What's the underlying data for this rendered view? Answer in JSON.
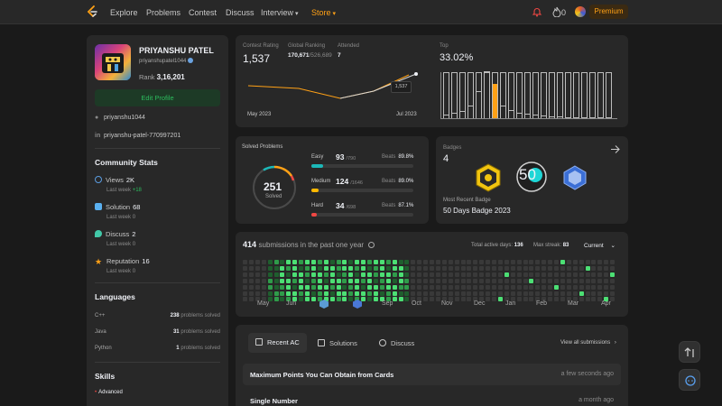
{
  "nav": {
    "items": [
      "Explore",
      "Problems",
      "Contest",
      "Discuss",
      "Interview",
      "Store"
    ],
    "fire_count": "0",
    "premium": "Premium"
  },
  "profile": {
    "name": "PRIYANSHU PATEL",
    "handle": "priyanshupatel1044",
    "rank_label": "Rank",
    "rank": "3,16,201",
    "edit": "Edit Profile",
    "github": "priyanshu1044",
    "linkedin": "priyanshu-patel-770997201"
  },
  "community": {
    "title": "Community Stats",
    "items": [
      {
        "label": "Views",
        "value": "2K",
        "sub": "Last week",
        "sub_val": "+18",
        "color": "#5a9ce0"
      },
      {
        "label": "Solution",
        "value": "68",
        "sub": "Last week",
        "sub_val": "0",
        "color": "#5ab0f0"
      },
      {
        "label": "Discuss",
        "value": "2",
        "sub": "Last week",
        "sub_val": "0",
        "color": "#42c8a8"
      },
      {
        "label": "Reputation",
        "value": "16",
        "sub": "Last week",
        "sub_val": "0",
        "color": "#ffa116"
      }
    ]
  },
  "languages": {
    "title": "Languages",
    "items": [
      {
        "name": "C++",
        "count": "238",
        "suffix": "problems solved"
      },
      {
        "name": "Java",
        "count": "31",
        "suffix": "problems solved"
      },
      {
        "name": "Python",
        "count": "1",
        "suffix": "problems solved"
      }
    ]
  },
  "skills": {
    "title": "Skills",
    "level": "Advanced"
  },
  "contest": {
    "rating_label": "Contest Rating",
    "rating": "1,537",
    "global_label": "Global Ranking",
    "global": "170,671",
    "global_total": "/526,689",
    "attended_label": "Attended",
    "attended": "7",
    "x_start": "May 2023",
    "x_end": "Jul 2023",
    "tooltip": "1,537",
    "top_label": "Top",
    "top_pct": "33.02%"
  },
  "solved": {
    "title": "Solved Problems",
    "total": "251",
    "total_label": "Solved",
    "rows": [
      {
        "label": "Easy",
        "count": "93",
        "total": "/790",
        "beats_label": "Beats",
        "beats": "89.8%",
        "color": "#1cb8b8",
        "fill": 0.118
      },
      {
        "label": "Medium",
        "count": "124",
        "total": "/1646",
        "beats_label": "Beats",
        "beats": "89.0%",
        "color": "#ffb800",
        "fill": 0.075
      },
      {
        "label": "Hard",
        "count": "34",
        "total": "/698",
        "beats_label": "Beats",
        "beats": "87.1%",
        "color": "#ef4743",
        "fill": 0.049
      }
    ]
  },
  "badges": {
    "title": "Badges",
    "count": "4",
    "recent_label": "Most Recent Badge",
    "recent": "50 Days Badge 2023",
    "fifty": "50"
  },
  "submissions": {
    "count": "414",
    "label": "submissions in the past one year",
    "active_label": "Total active days:",
    "active": "136",
    "streak_label": "Max streak:",
    "streak": "83",
    "period": "Current",
    "months": [
      "May",
      "Jun",
      "Jul",
      "Aug",
      "Sep",
      "Oct",
      "Nov",
      "Dec",
      "Jan",
      "Feb",
      "Mar",
      "Apr"
    ]
  },
  "recent": {
    "tabs": [
      "Recent AC",
      "Solutions",
      "Discuss"
    ],
    "view_all": "View all submissions",
    "items": [
      {
        "title": "Maximum Points You Can Obtain from Cards",
        "time": "a few seconds ago"
      },
      {
        "title": "Single Number",
        "time": "a month ago"
      }
    ]
  }
}
